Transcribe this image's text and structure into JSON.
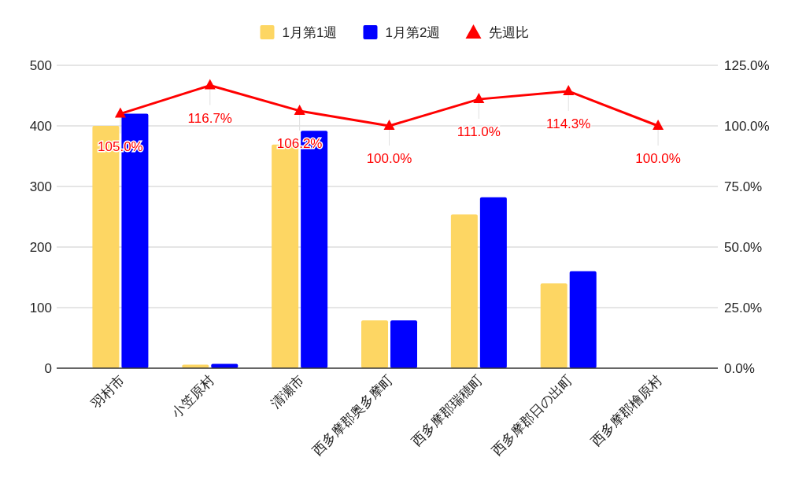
{
  "chart_data": {
    "type": "bar",
    "categories": [
      "羽村市",
      "小笠原村",
      "清瀬市",
      "西多摩郡奥多摩町",
      "西多摩郡瑞穂町",
      "西多摩郡日の出町",
      "西多摩郡檜原村"
    ],
    "series": [
      {
        "name": "1月第1週",
        "color": "#fdd663",
        "values": [
          400,
          6,
          369,
          79,
          254,
          140,
          0
        ]
      },
      {
        "name": "1月第2週",
        "color": "#0000ff",
        "values": [
          420,
          7,
          392,
          79,
          282,
          160,
          0
        ]
      },
      {
        "name": "先週比",
        "type": "line",
        "axis": "y2",
        "color": "#ff0000",
        "marker": "triangle",
        "values": [
          105.0,
          116.7,
          106.2,
          100.0,
          111.0,
          114.3,
          100.0
        ],
        "value_labels": [
          "105.0%",
          "116.7%",
          "106.2%",
          "100.0%",
          "111.0%",
          "114.3%",
          "100.0%"
        ]
      }
    ],
    "ylim": [
      0,
      500
    ],
    "yticks": [
      0,
      100,
      200,
      300,
      400,
      500
    ],
    "y2lim": [
      0,
      125
    ],
    "y2ticks": [
      {
        "value": 0,
        "label": "0.0%"
      },
      {
        "value": 25,
        "label": "25.0%"
      },
      {
        "value": 50,
        "label": "50.0%"
      },
      {
        "value": 75,
        "label": "75.0%"
      },
      {
        "value": 100,
        "label": "100.0%"
      },
      {
        "value": 125,
        "label": "125.0%"
      }
    ],
    "grid": "y",
    "legend": "top"
  }
}
